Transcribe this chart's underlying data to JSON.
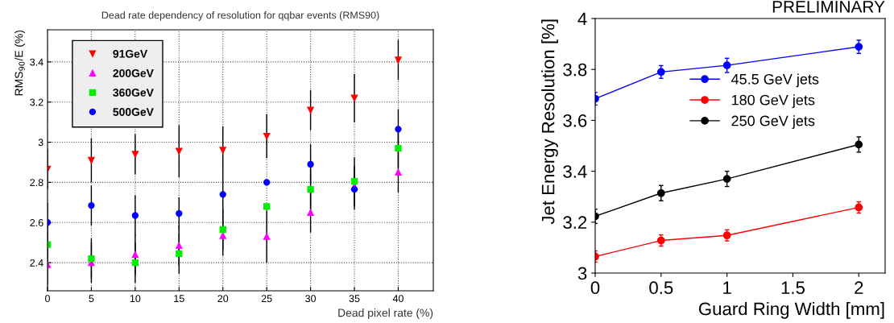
{
  "chart_data": [
    {
      "type": "scatter",
      "title": "Dead rate dependency of resolution for qqbar events (RMS90)",
      "xlabel": "Dead pixel rate (%)",
      "ylabel": "RMS$_{90}$/E (%)",
      "x": [
        0,
        5,
        10,
        15,
        20,
        25,
        30,
        35,
        40
      ],
      "series": [
        {
          "name": "91GeV",
          "color": "#ff0000",
          "marker": "triangle_down",
          "values": [
            2.866,
            2.91,
            2.94,
            2.955,
            2.96,
            3.03,
            3.16,
            3.22,
            3.41
          ],
          "errors": [
            0.1,
            0.11,
            0.1,
            0.13,
            0.12,
            0.11,
            0.1,
            0.12,
            0.1
          ]
        },
        {
          "name": "200GeV",
          "color": "#ff00ff",
          "marker": "triangle",
          "values": [
            2.39,
            2.4,
            2.44,
            2.485,
            2.535,
            2.53,
            2.65,
            2.78,
            2.85
          ],
          "errors": [
            0.1,
            0.1,
            0.1,
            0.1,
            0.1,
            0.13,
            0.1,
            0.1,
            0.1
          ]
        },
        {
          "name": "360GeV",
          "color": "#00ee00",
          "marker": "square",
          "values": [
            2.49,
            2.42,
            2.4,
            2.445,
            2.565,
            2.68,
            2.765,
            2.805,
            2.97
          ],
          "errors": [
            0.1,
            0.1,
            0.1,
            0.1,
            0.1,
            null,
            0.1,
            0.12,
            0.1
          ]
        },
        {
          "name": "500GeV",
          "color": "#0000ff",
          "marker": "circle",
          "values": [
            2.6,
            2.685,
            2.635,
            2.645,
            2.74,
            2.8,
            2.89,
            2.765,
            3.065
          ],
          "errors": [
            0.1,
            0.1,
            0.1,
            0.08,
            0.1,
            null,
            0.1,
            0.1,
            0.1
          ]
        }
      ],
      "xlim": [
        0,
        44
      ],
      "xticks": [
        0,
        5,
        10,
        15,
        20,
        25,
        30,
        35,
        40
      ],
      "ylim": [
        2.26,
        3.56
      ],
      "yticks": [
        {
          "value": 2.4,
          "label": "2.4"
        },
        {
          "value": 2.6,
          "label": "2.6"
        },
        {
          "value": 2.8,
          "label": "2.8"
        },
        {
          "value": 3.0,
          "label": "3"
        },
        {
          "value": 3.2,
          "label": "3.2"
        },
        {
          "value": 3.4,
          "label": "3.4"
        }
      ],
      "grid": true,
      "legend": "top left"
    },
    {
      "type": "line",
      "xlabel": "Guard Ring Width [mm]",
      "ylabel": "Jet Energy Resolution [%]",
      "annotations": [
        "PRELIMINARY"
      ],
      "x": [
        0,
        0.5,
        1,
        2
      ],
      "series": [
        {
          "name": "45.5 GeV jets",
          "color": "#0000ff",
          "marker": "circle",
          "line_style": "solid",
          "values": [
            3.685,
            3.79,
            3.816,
            3.889
          ],
          "errors": [
            0.025,
            0.025,
            0.028,
            0.026
          ]
        },
        {
          "name": "180 GeV jets",
          "color": "#ff0000",
          "marker": "circle",
          "line_style": "solid",
          "values": [
            3.065,
            3.128,
            3.148,
            3.258
          ],
          "errors": [
            0.022,
            0.022,
            0.022,
            0.022
          ]
        },
        {
          "name": "250 GeV jets",
          "color": "#000000",
          "marker": "circle",
          "line_style": "solid",
          "values": [
            3.223,
            3.314,
            3.37,
            3.505
          ],
          "errors": [
            0.028,
            0.03,
            0.03,
            0.03
          ]
        }
      ],
      "xlim": [
        0,
        2.2
      ],
      "xticks": [
        0,
        0.5,
        1,
        1.5,
        2
      ],
      "ylim": [
        3,
        4
      ],
      "yticks": [
        3,
        3.2,
        3.4,
        3.6,
        3.8,
        4
      ],
      "grid": false,
      "legend": "center"
    }
  ]
}
